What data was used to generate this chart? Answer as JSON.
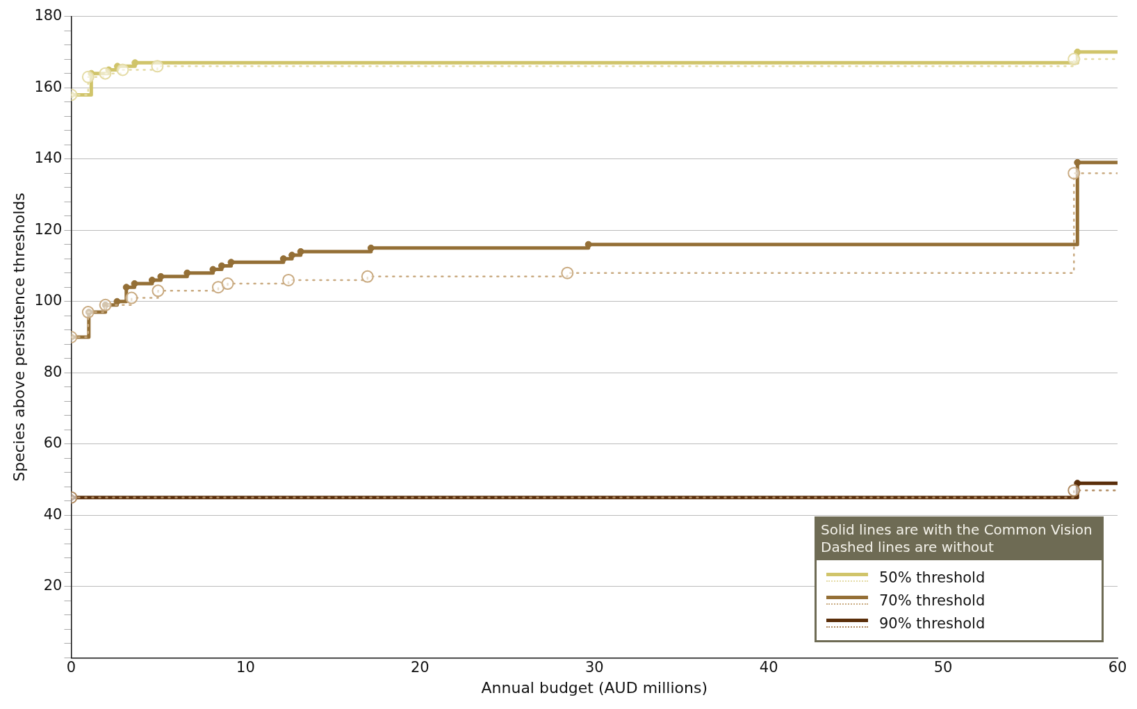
{
  "chart_data": {
    "type": "step",
    "xlabel": "Annual budget (AUD millions)",
    "ylabel": "Species above persistence thresholds",
    "legend_title": "Solid lines are with the Common Vision\nDashed lines are without",
    "legend": "bottom right",
    "grid": "y",
    "marker": "circle",
    "xlim": [
      0,
      60
    ],
    "xticks": [
      0,
      10,
      20,
      30,
      40,
      50,
      60
    ],
    "ylim": [
      0,
      180
    ],
    "yticks": [
      {
        "value": 0,
        "label": null
      },
      {
        "value": 4,
        "label": null
      },
      {
        "value": 8,
        "label": null
      },
      {
        "value": 12,
        "label": null
      },
      {
        "value": 16,
        "label": null
      },
      20,
      {
        "value": 24,
        "label": null
      },
      {
        "value": 28,
        "label": null
      },
      {
        "value": 32,
        "label": null
      },
      {
        "value": 36,
        "label": null
      },
      40,
      {
        "value": 44,
        "label": null
      },
      {
        "value": 48,
        "label": null
      },
      {
        "value": 52,
        "label": null
      },
      {
        "value": 56,
        "label": null
      },
      60,
      {
        "value": 64,
        "label": null
      },
      {
        "value": 68,
        "label": null
      },
      {
        "value": 72,
        "label": null
      },
      {
        "value": 76,
        "label": null
      },
      80,
      {
        "value": 84,
        "label": null
      },
      {
        "value": 88,
        "label": null
      },
      {
        "value": 92,
        "label": null
      },
      {
        "value": 96,
        "label": null
      },
      100,
      {
        "value": 104,
        "label": null
      },
      {
        "value": 108,
        "label": null
      },
      {
        "value": 112,
        "label": null
      },
      {
        "value": 116,
        "label": null
      },
      120,
      {
        "value": 124,
        "label": null
      },
      {
        "value": 128,
        "label": null
      },
      {
        "value": 132,
        "label": null
      },
      {
        "value": 136,
        "label": null
      },
      140,
      {
        "value": 144,
        "label": null
      },
      {
        "value": 148,
        "label": null
      },
      {
        "value": 152,
        "label": null
      },
      {
        "value": 156,
        "label": null
      },
      160,
      {
        "value": 164,
        "label": null
      },
      {
        "value": 168,
        "label": null
      },
      {
        "value": 172,
        "label": null
      },
      {
        "value": 176,
        "label": null
      },
      180
    ],
    "series": [
      {
        "name": "50% threshold",
        "color": "#d0c46a",
        "line_style": "solid",
        "x": [
          0,
          1.15,
          2.15,
          2.65,
          3.66,
          57.7,
          60
        ],
        "values": [
          158,
          164,
          165,
          166,
          167,
          170,
          170
        ]
      },
      {
        "color": "#e4dba4",
        "line_style": "dotted",
        "x": [
          0,
          0.97,
          1.95,
          2.95,
          4.94,
          57.5,
          60
        ],
        "values": [
          158,
          163,
          164,
          165,
          166,
          168,
          168
        ]
      },
      {
        "name": "70% threshold",
        "color": "#946f36",
        "line_style": "solid",
        "x": [
          0,
          1.01,
          1.96,
          2.63,
          3.16,
          3.63,
          4.64,
          5.14,
          6.65,
          8.13,
          8.63,
          9.17,
          12.17,
          12.66,
          13.16,
          17.19,
          29.66,
          57.7,
          60
        ],
        "values": [
          90,
          97,
          99,
          100,
          104,
          105,
          106,
          107,
          108,
          109,
          110,
          111,
          112,
          113,
          114,
          115,
          116,
          139,
          139
        ]
      },
      {
        "color": "#c9aa80",
        "line_style": "dotted",
        "x": [
          0,
          0.97,
          1.96,
          3.46,
          4.98,
          8.43,
          8.97,
          12.46,
          16.99,
          28.45,
          57.5,
          60
        ],
        "values": [
          90,
          97,
          99,
          101,
          103,
          104,
          105,
          106,
          107,
          108,
          136,
          136
        ]
      },
      {
        "name": "90% threshold",
        "color": "#5a2e0a",
        "line_style": "solid",
        "x": [
          0,
          57.7,
          60
        ],
        "values": [
          45,
          49,
          49
        ]
      },
      {
        "color": "#b08a60",
        "line_style": "dotted",
        "x": [
          0,
          57.5,
          60
        ],
        "values": [
          45,
          47,
          47
        ]
      }
    ]
  }
}
